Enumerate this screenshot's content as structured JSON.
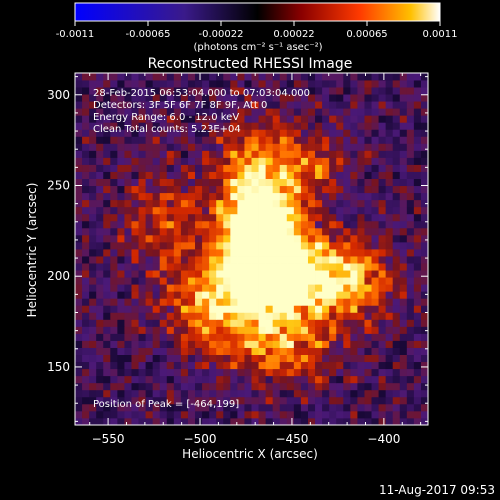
{
  "chart_data": {
    "type": "heatmap",
    "title": "Reconstructed RHESSI Image",
    "xlabel": "Heliocentric X (arcsec)",
    "ylabel": "Heliocentric Y (arcsec)",
    "xlim": [
      -568,
      -376
    ],
    "ylim": [
      118,
      312
    ],
    "xticks": [
      -550,
      -500,
      -450,
      -400
    ],
    "yticks": [
      150,
      200,
      250,
      300
    ],
    "colorbar": {
      "min": -0.0011,
      "max": 0.0011,
      "ticks": [
        "-0.0011",
        "-0.00065",
        "-0.00022",
        "0.00022",
        "0.00065",
        "0.0011"
      ],
      "units": "(photons cm⁻² s⁻¹ asec⁻²)",
      "colormap": "blue-purple-red-yellow-white"
    },
    "annotations": [
      "28-Feb-2015 06:53:04.000 to 07:03:04.000",
      "Detectors: 3F 5F 6F 7F 8F 9F, Att 0",
      "Energy Range: 6.0 - 12.0 keV",
      "Clean    Total counts: 5.23E+04"
    ],
    "peak_label": "Position of Peak = [-464,199]",
    "peak": [
      -464,
      199
    ],
    "sources": [
      {
        "x": -470,
        "y": 238,
        "amp": 0.95,
        "sx": 14,
        "sy": 28
      },
      {
        "x": -462,
        "y": 205,
        "amp": 1.0,
        "sx": 16,
        "sy": 20
      },
      {
        "x": -425,
        "y": 198,
        "amp": 0.75,
        "sx": 20,
        "sy": 16
      },
      {
        "x": -495,
        "y": 185,
        "amp": 0.55,
        "sx": 18,
        "sy": 18
      },
      {
        "x": -440,
        "y": 260,
        "amp": 0.4,
        "sx": 14,
        "sy": 14
      },
      {
        "x": -520,
        "y": 230,
        "amp": 0.35,
        "sx": 16,
        "sy": 22
      },
      {
        "x": -455,
        "y": 160,
        "amp": 0.45,
        "sx": 22,
        "sy": 14
      }
    ]
  },
  "footer_timestamp": "11-Aug-2017 09:53"
}
